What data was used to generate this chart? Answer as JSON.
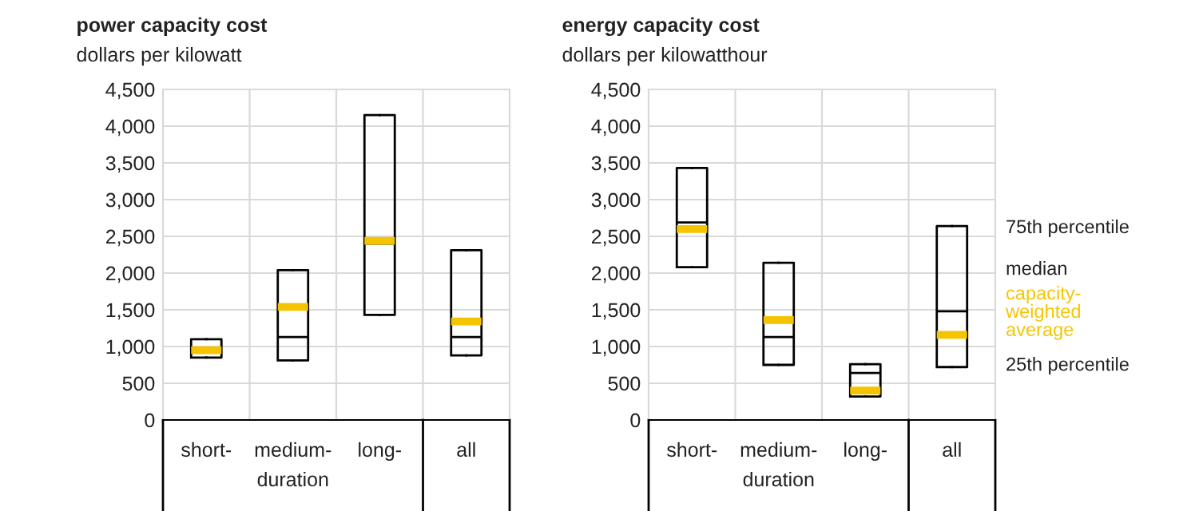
{
  "chart_data": [
    {
      "type": "box",
      "title": "power capacity cost",
      "subtitle": "dollars per kilowatt",
      "xlabel": "duration",
      "categories": [
        "short-",
        "medium-",
        "long-",
        "all"
      ],
      "series": [
        {
          "color": "#000000",
          "boxes": [
            {
              "low": 850,
              "q1": 850,
              "median": 950,
              "q3": 1100,
              "high": 1100,
              "mean": 950
            },
            {
              "low": 810,
              "q1": 810,
              "median": 1130,
              "q3": 2040,
              "high": 2040,
              "mean": 1540
            },
            {
              "low": 1430,
              "q1": 1430,
              "median": 2400,
              "q3": 4150,
              "high": 4150,
              "mean": 2440
            },
            {
              "low": 880,
              "q1": 880,
              "median": 1130,
              "q3": 2310,
              "high": 2310,
              "mean": 1340
            }
          ]
        }
      ],
      "ylim": [
        0,
        4500
      ],
      "yticks": [
        0,
        500,
        {
          "value": 1000,
          "label": "1,000"
        },
        {
          "value": 1500,
          "label": "1,500"
        },
        {
          "value": 2000,
          "label": "2,000"
        },
        {
          "value": 2500,
          "label": "2,500"
        },
        {
          "value": 3000,
          "label": "3,000"
        },
        {
          "value": 3500,
          "label": "3,500"
        },
        {
          "value": 4000,
          "label": "4,000"
        },
        {
          "value": 4500,
          "label": "4,500"
        }
      ],
      "grid": true
    },
    {
      "type": "box",
      "title": "energy capacity cost",
      "subtitle": "dollars per kilowatthour",
      "xlabel": "duration",
      "categories": [
        "short-",
        "medium-",
        "long-",
        "all"
      ],
      "series": [
        {
          "color": "#000000",
          "boxes": [
            {
              "low": 2080,
              "q1": 2080,
              "median": 2690,
              "q3": 3430,
              "high": 3430,
              "mean": 2600
            },
            {
              "low": 750,
              "q1": 750,
              "median": 1130,
              "q3": 2140,
              "high": 2140,
              "mean": 1360
            },
            {
              "low": 320,
              "q1": 320,
              "median": 640,
              "q3": 760,
              "high": 760,
              "mean": 400
            },
            {
              "low": 720,
              "q1": 720,
              "median": 1480,
              "q3": 2640,
              "high": 2640,
              "mean": 1160
            }
          ]
        }
      ],
      "ylim": [
        0,
        4500
      ],
      "yticks": [
        0,
        500,
        {
          "value": 1000,
          "label": "1,000"
        },
        {
          "value": 1500,
          "label": "1,500"
        },
        {
          "value": 2000,
          "label": "2,000"
        },
        {
          "value": 2500,
          "label": "2,500"
        },
        {
          "value": 3000,
          "label": "3,000"
        },
        {
          "value": 3500,
          "label": "3,500"
        },
        {
          "value": 4000,
          "label": "4,000"
        },
        {
          "value": 4500,
          "label": "4,500"
        }
      ],
      "grid": true,
      "annotations": [
        "75th percentile",
        "median",
        "capacity-weighted average",
        "25th percentile"
      ]
    }
  ]
}
